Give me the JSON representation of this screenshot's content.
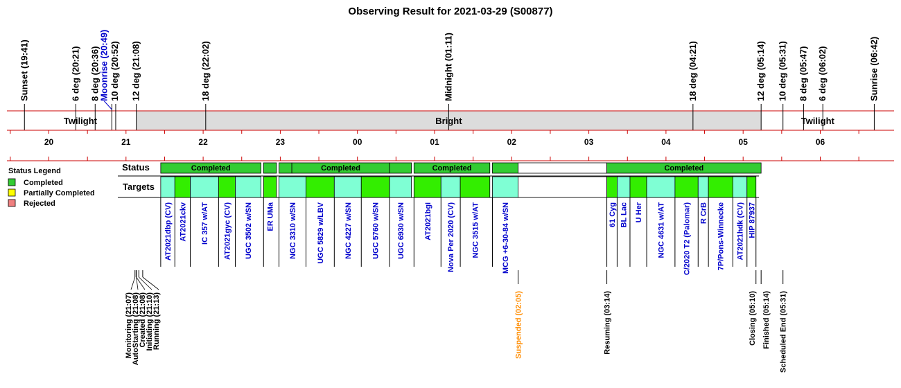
{
  "chart_data": {
    "type": "timeline",
    "title": "Observing Result for 2021-03-29 (S00877)",
    "sky_events": [
      {
        "label": "Sunset (19:41)",
        "time": "19:41",
        "style": "normal"
      },
      {
        "label": "6 deg (20:21)",
        "time": "20:21",
        "style": "normal"
      },
      {
        "label": "8 deg (20:36)",
        "time": "20:36",
        "style": "normal"
      },
      {
        "label": "Moonrise (20:49)",
        "time": "20:49",
        "style": "moon"
      },
      {
        "label": "10 deg (20:52)",
        "time": "20:52",
        "style": "normal"
      },
      {
        "label": "12 deg (21:08)",
        "time": "21:08",
        "style": "normal"
      },
      {
        "label": "18 deg (22:02)",
        "time": "22:02",
        "style": "normal"
      },
      {
        "label": "Midnight (01:11)",
        "time": "01:11",
        "style": "normal"
      },
      {
        "label": "18 deg (04:21)",
        "time": "04:21",
        "style": "normal"
      },
      {
        "label": "12 deg (05:14)",
        "time": "05:14",
        "style": "normal"
      },
      {
        "label": "10 deg (05:31)",
        "time": "05:31",
        "style": "normal"
      },
      {
        "label": "8 deg (05:47)",
        "time": "05:47",
        "style": "normal"
      },
      {
        "label": "6 deg (06:02)",
        "time": "06:02",
        "style": "normal"
      },
      {
        "label": "Sunrise (06:42)",
        "time": "06:42",
        "style": "normal"
      }
    ],
    "sky_periods": [
      {
        "label": "Twilight",
        "start": "19:41",
        "end": "21:08",
        "fill": "#ffffff"
      },
      {
        "label": "Bright",
        "start": "21:08",
        "end": "05:14",
        "fill": "#dcdcdc"
      },
      {
        "label": "Twilight",
        "start": "05:14",
        "end": "06:42",
        "fill": "#ffffff"
      }
    ],
    "hour_ticks": [
      "20",
      "21",
      "22",
      "23",
      "00",
      "01",
      "02",
      "03",
      "04",
      "05",
      "06"
    ],
    "legend": {
      "title": "Status Legend",
      "items": [
        {
          "label": "Completed",
          "color": "#33cc33"
        },
        {
          "label": "Partially Completed",
          "color": "#ffff00"
        },
        {
          "label": "Rejected",
          "color": "#f08080"
        }
      ]
    },
    "row_labels": {
      "status": "Status",
      "targets": "Targets"
    },
    "status_blocks": [
      {
        "start": "21:27",
        "end": "22:45",
        "label": "Completed"
      },
      {
        "start": "22:47",
        "end": "22:57",
        "label": ""
      },
      {
        "start": "22:59",
        "end": "23:09",
        "label": ""
      },
      {
        "start": "23:09",
        "end": "00:25",
        "label": "Completed"
      },
      {
        "start": "00:25",
        "end": "00:42",
        "label": ""
      },
      {
        "start": "00:44",
        "end": "01:43",
        "label": "Completed"
      },
      {
        "start": "01:45",
        "end": "02:05",
        "label": ""
      },
      {
        "start": "02:05",
        "end": "03:14",
        "label": "",
        "empty": true
      },
      {
        "start": "03:14",
        "end": "05:14",
        "label": "Completed"
      }
    ],
    "targets": [
      {
        "name": "AT2021dbp (CV)",
        "start": "21:27",
        "end": "21:38",
        "color": "#7fffd4"
      },
      {
        "name": "AT2021ckv",
        "start": "21:38",
        "end": "21:50",
        "color": "#33ee00"
      },
      {
        "name": "IC 357 w/AT",
        "start": "21:50",
        "end": "22:12",
        "color": "#7fffd4"
      },
      {
        "name": "AT2021gyc (CV)",
        "start": "22:12",
        "end": "22:25",
        "color": "#33ee00"
      },
      {
        "name": "UGC 3502 w/SN",
        "start": "22:25",
        "end": "22:45",
        "color": "#7fffd4"
      },
      {
        "name": "ER UMa",
        "start": "22:47",
        "end": "22:57",
        "color": "#33ee00"
      },
      {
        "name": "NGC 3310 w/SN",
        "start": "22:59",
        "end": "23:20",
        "color": "#7fffd4"
      },
      {
        "name": "UGC 5829 w/LBV",
        "start": "23:20",
        "end": "23:42",
        "color": "#33ee00"
      },
      {
        "name": "NGC 4227 w/SN",
        "start": "23:42",
        "end": "24:03",
        "color": "#7fffd4"
      },
      {
        "name": "UGC 5760 w/SN",
        "start": "24:03",
        "end": "24:25",
        "color": "#33ee00"
      },
      {
        "name": "UGC 6930 w/SN",
        "start": "24:25",
        "end": "24:42",
        "color": "#7fffd4"
      },
      {
        "name": "AT2021bgi",
        "start": "24:44",
        "end": "25:05",
        "color": "#33ee00"
      },
      {
        "name": "Nova Per 2020 (CV)",
        "start": "25:05",
        "end": "25:20",
        "color": "#7fffd4"
      },
      {
        "name": "NGC 3515 w/AT",
        "start": "25:20",
        "end": "25:43",
        "color": "#33ee00"
      },
      {
        "name": "MCG +6-30-84 w/SN",
        "start": "25:45",
        "end": "26:05",
        "color": "#7fffd4"
      },
      {
        "name": "61 Cyg",
        "start": "27:14",
        "end": "27:22",
        "color": "#33ee00"
      },
      {
        "name": "BL Lac",
        "start": "27:22",
        "end": "27:32",
        "color": "#7fffd4"
      },
      {
        "name": "U Her",
        "start": "27:32",
        "end": "27:45",
        "color": "#33ee00"
      },
      {
        "name": "NGC 4631 w/AT",
        "start": "27:45",
        "end": "28:07",
        "color": "#7fffd4"
      },
      {
        "name": "C/2020 T2 (Palomar)",
        "start": "28:07",
        "end": "28:25",
        "color": "#33ee00"
      },
      {
        "name": "R CrB",
        "start": "28:25",
        "end": "28:33",
        "color": "#7fffd4"
      },
      {
        "name": "7P/Pons-Winnecke",
        "start": "28:33",
        "end": "28:52",
        "color": "#33ee00"
      },
      {
        "name": "AT2021hdk (CV)",
        "start": "28:52",
        "end": "29:03",
        "color": "#7fffd4"
      },
      {
        "name": "HIP 87937",
        "start": "29:03",
        "end": "29:10",
        "color": "#33ee00"
      }
    ],
    "ops_events": [
      {
        "label": "Monitoring (21:07)",
        "time": "21:07",
        "color": "#000000"
      },
      {
        "label": "AutoStarting (21:08)",
        "time": "21:08",
        "color": "#000000"
      },
      {
        "label": "Created (21:08)",
        "time": "21:08",
        "color": "#000000"
      },
      {
        "label": "Initiating (21:10)",
        "time": "21:10",
        "color": "#000000"
      },
      {
        "label": "Running (21:13)",
        "time": "21:13",
        "color": "#000000"
      },
      {
        "label": "Suspended (02:05)",
        "time": "02:05",
        "color": "#ff8c00"
      },
      {
        "label": "Resuming (03:14)",
        "time": "03:14",
        "color": "#000000"
      },
      {
        "label": "Closing (05:10)",
        "time": "05:10",
        "color": "#000000"
      },
      {
        "label": "Finished (05:14)",
        "time": "05:14",
        "color": "#000000"
      },
      {
        "label": "Scheduled End (05:31)",
        "time": "05:31",
        "color": "#000000"
      }
    ],
    "colors": {
      "sky_line": "#cc0000",
      "target_text": "#0000cc",
      "moon_text": "#0000cc"
    }
  }
}
